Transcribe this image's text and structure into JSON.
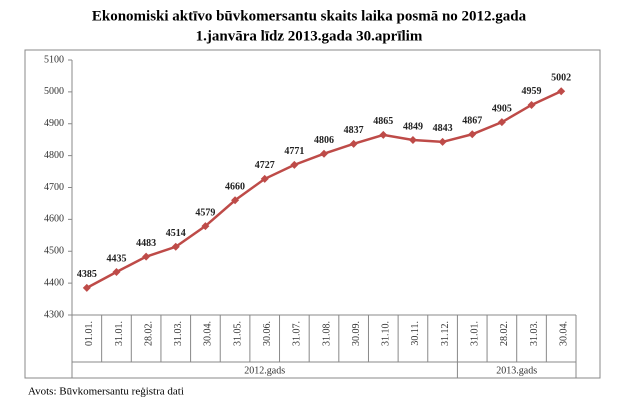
{
  "chart_data": {
    "type": "line",
    "title": [
      "Ekonomiski aktīvo būvkomersantu skaits laika posmā no 2012.gada",
      "1.janvāra līdz 2013.gada 30.aprīlim"
    ],
    "categories": [
      "01.01.",
      "31.01.",
      "28.02.",
      "31.03.",
      "30.04.",
      "31.05.",
      "30.06.",
      "31.07.",
      "31.08.",
      "30.09.",
      "31.10.",
      "30.11.",
      "31.12.",
      "31.01.",
      "28.02.",
      "31.03.",
      "30.04."
    ],
    "groups": [
      "2012.gads",
      "2013.gads"
    ],
    "values": [
      4385,
      4435,
      4483,
      4514,
      4579,
      4660,
      4727,
      4771,
      4806,
      4837,
      4865,
      4849,
      4843,
      4867,
      4905,
      4959,
      5002
    ],
    "color": "#be4b48",
    "ylim": [
      4300,
      5100
    ],
    "yticks": [
      4300,
      4400,
      4500,
      4600,
      4700,
      4800,
      4900,
      5000,
      5100
    ],
    "grid": false,
    "source": "Avots: Būvkomersantu reģistra dati"
  }
}
